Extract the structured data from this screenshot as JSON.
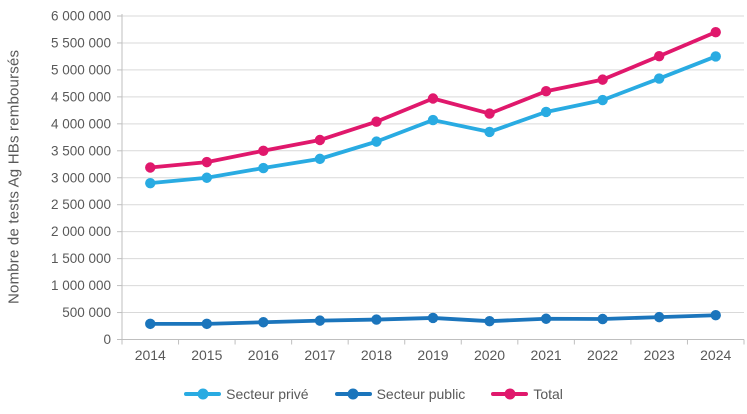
{
  "chart_data": {
    "type": "line",
    "title": "",
    "xlabel": "",
    "ylabel": "Nombre de tests Ag HBs remboursés",
    "categories": [
      "2014",
      "2015",
      "2016",
      "2017",
      "2018",
      "2019",
      "2020",
      "2021",
      "2022",
      "2023",
      "2024"
    ],
    "series": [
      {
        "name": "Secteur privé",
        "color": "#29ABE2",
        "marker": "circle",
        "values": [
          2900000,
          3000000,
          3180000,
          3350000,
          3670000,
          4070000,
          3850000,
          4220000,
          4440000,
          4840000,
          5250000
        ]
      },
      {
        "name": "Secteur public",
        "color": "#1B75BC",
        "marker": "circle",
        "values": [
          290000,
          290000,
          320000,
          350000,
          370000,
          400000,
          340000,
          385000,
          380000,
          415000,
          450000
        ]
      },
      {
        "name": "Total",
        "color": "#E0186C",
        "marker": "circle",
        "values": [
          3190000,
          3290000,
          3500000,
          3700000,
          4040000,
          4470000,
          4190000,
          4605000,
          4820000,
          5255000,
          5700000
        ]
      }
    ],
    "ylim": [
      0,
      6000000
    ],
    "ytick_step": 500000,
    "ytick_labels": [
      "0",
      "500 000",
      "1 000 000",
      "1 500 000",
      "2 000 000",
      "2 500 000",
      "3 000 000",
      "3 500 000",
      "4 000 000",
      "4 500 000",
      "5 000 000",
      "5 500 000",
      "6 000 000"
    ],
    "grid": true,
    "legend_position": "bottom"
  },
  "style_colors": {
    "grid": "#D9D9D9",
    "axis": "#BFBFBF",
    "text": "#595959",
    "background": "#FFFFFF"
  }
}
